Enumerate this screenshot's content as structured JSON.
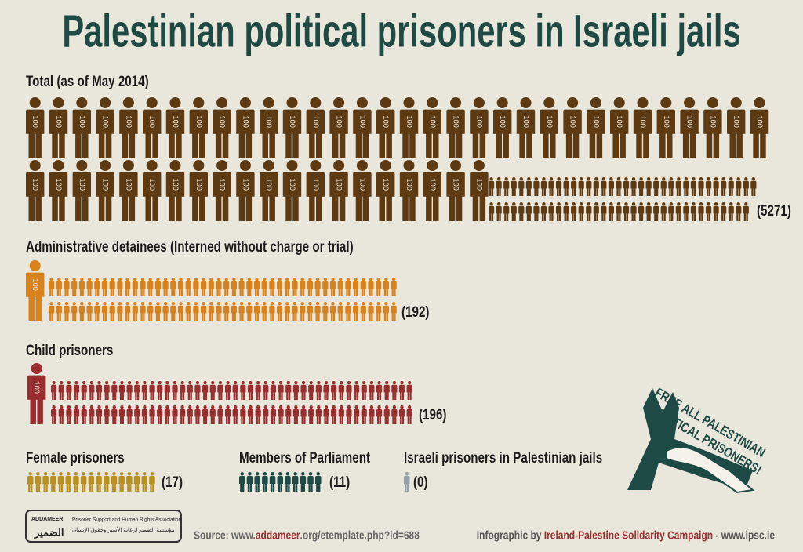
{
  "title": "Palestinian political prisoners in Israeli jails",
  "big_icon_unit": 100,
  "sections": [
    {
      "label": "Total (as of May 2014)",
      "value": 5271,
      "value_label": "(5271)",
      "color": "#5e3a12"
    },
    {
      "label": "Administrative detainees (Interned without charge or trial)",
      "value": 192,
      "value_label": "(192)",
      "color": "#d9821c"
    },
    {
      "label": "Child prisoners",
      "value": 196,
      "value_label": "(196)",
      "color": "#9a2e2e"
    },
    {
      "label": "Female prisoners",
      "value": 17,
      "value_label": "(17)",
      "color": "#b8901f"
    },
    {
      "label": "Members of Parliament",
      "value": 11,
      "value_label": "(11)",
      "color": "#1e4a45"
    },
    {
      "label": "Israeli prisoners in Palestinian jails",
      "value": 0,
      "value_label": "(0)",
      "color": "#8a9aa8"
    }
  ],
  "slogan": [
    "FREE ALL PALESTINIAN",
    "POLITICAL PRISONERS!"
  ],
  "footer": {
    "logo_name": "ADDAMEER",
    "logo_arabic_name": "الضمير",
    "logo_tagline": "Prisoner Support and Human Rights Association",
    "logo_tagline_arabic": "مؤسسة الضمير لرعاية الأسير وحقوق الإنسان",
    "source_prefix": "Source: www.",
    "source_highlight": "addameer",
    "source_suffix": ".org/etemplate.php?id=688",
    "credit_prefix": "Infographic by ",
    "credit_highlight": "Ireland-Palestine Solidarity Campaign",
    "credit_suffix": " - www.ipsc.ie"
  }
}
